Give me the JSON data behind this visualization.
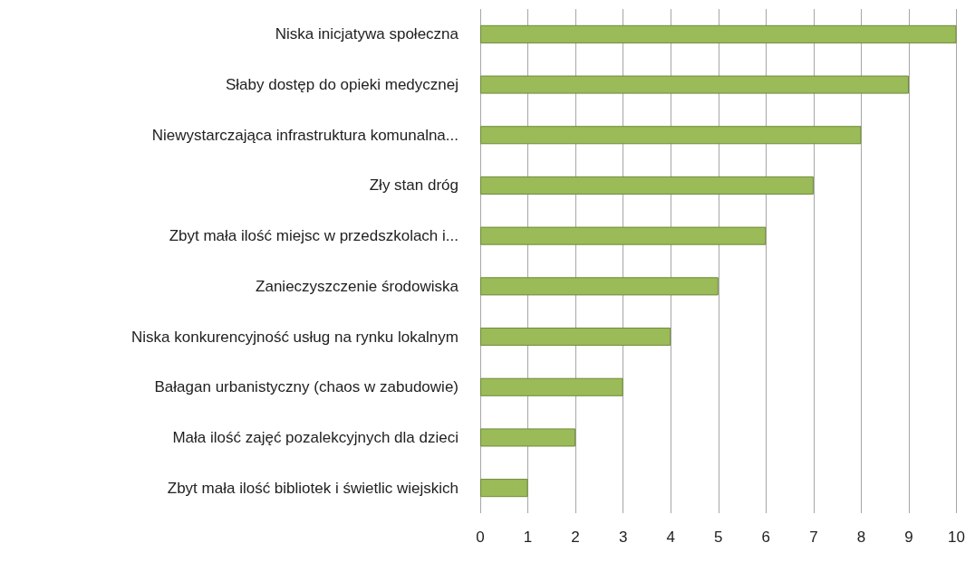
{
  "chart_data": {
    "type": "bar",
    "orientation": "horizontal",
    "categories": [
      "Niska inicjatywa społeczna",
      "Słaby dostęp do opieki medycznej",
      "Niewystarczająca infrastruktura komunalna...",
      "Zły stan dróg",
      "Zbyt mała ilość miejsc w przedszkolach i...",
      "Zanieczyszczenie środowiska",
      "Niska konkurencyjność usług na rynku lokalnym",
      "Bałagan urbanistyczny (chaos w zabudowie)",
      "Mała ilość zajęć pozalekcyjnych dla dzieci",
      "Zbyt mała ilość bibliotek i świetlic wiejskich"
    ],
    "values": [
      10,
      9,
      8,
      7,
      6,
      5,
      4,
      3,
      2,
      1
    ],
    "color": "#9bbb59",
    "xlim": [
      0,
      10
    ],
    "xticks": [
      0,
      1,
      2,
      3,
      4,
      5,
      6,
      7,
      8,
      9,
      10
    ],
    "grid": "x"
  }
}
